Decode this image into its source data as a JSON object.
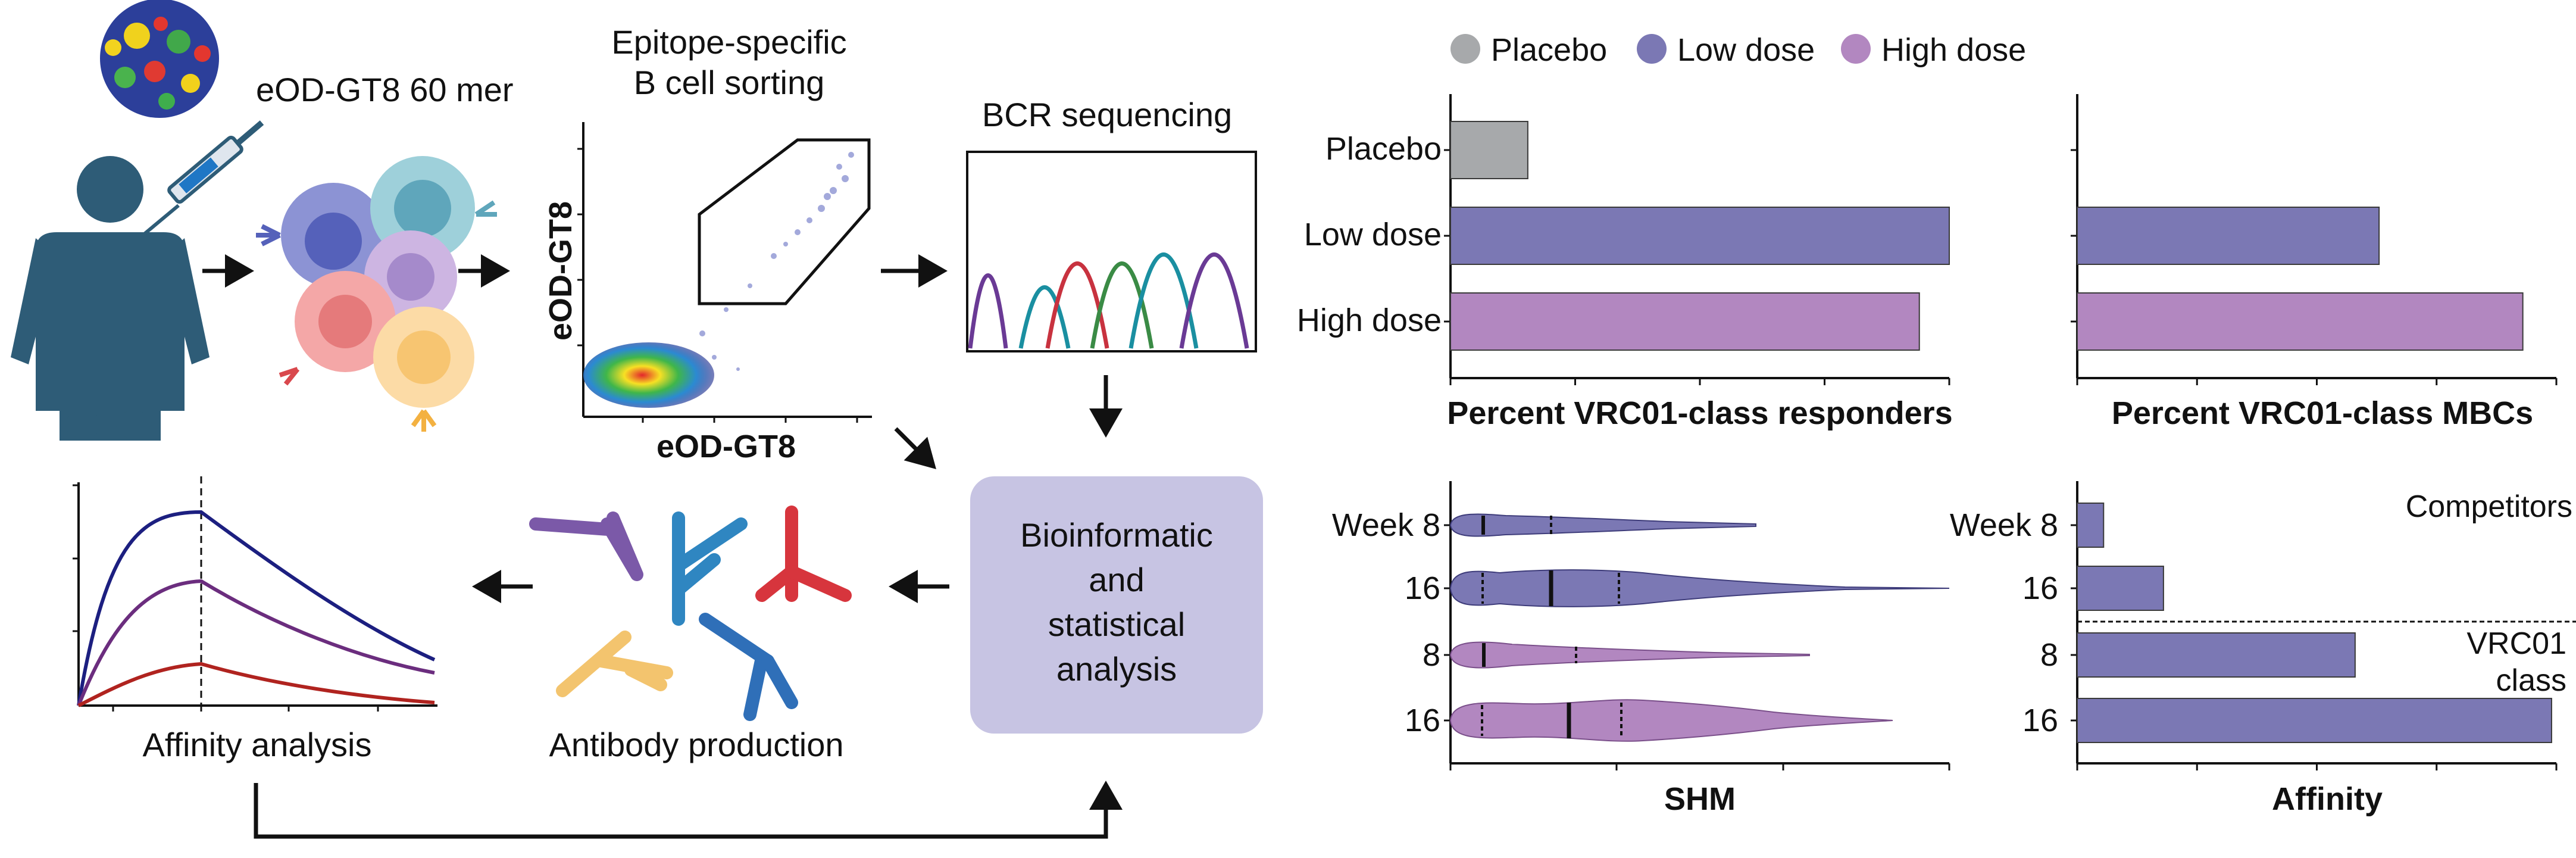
{
  "workflow": {
    "nanoparticle_label": "eOD-GT8 60 mer",
    "sorting_title_line1": "Epitope-specific",
    "sorting_title_line2": "B cell sorting",
    "flow_y_axis": "eOD-GT8",
    "flow_x_axis": "eOD-GT8",
    "sequencing_title": "BCR sequencing",
    "bioinformatic_line1": "Bioinformatic",
    "bioinformatic_line2": "and",
    "bioinformatic_line3": "statistical",
    "bioinformatic_line4": "analysis",
    "antibody_label": "Antibody production",
    "affinity_label": "Affinity analysis"
  },
  "legend": {
    "items": [
      {
        "label": "Placebo",
        "color": "#a7a9ab"
      },
      {
        "label": "Low dose",
        "color": "#7b78b4"
      },
      {
        "label": "High dose",
        "color": "#b287c0"
      }
    ]
  },
  "colors": {
    "placebo": "#a7a9ab",
    "low": "#7b78b4",
    "high": "#b287c0",
    "bio_box": "#c7c4e3"
  },
  "chart_data": [
    {
      "type": "bar",
      "xlabel": "Percent VRC01-class responders",
      "categories": [
        "Placebo",
        "Low dose",
        "High dose"
      ],
      "values": [
        0.155,
        1.0,
        0.94
      ],
      "xlim": [
        0,
        1
      ]
    },
    {
      "type": "bar",
      "xlabel": "Percent VRC01-class MBCs",
      "categories": [
        "",
        "",
        ""
      ],
      "values": [
        0,
        0.63,
        0.93
      ],
      "xlim": [
        0,
        1
      ]
    },
    {
      "type": "violin",
      "xlabel": "SHM",
      "categories": [
        "Week 8",
        "16",
        "8",
        "16"
      ],
      "group": [
        "low",
        "low",
        "high",
        "high"
      ],
      "xlim": [
        0,
        1
      ]
    },
    {
      "type": "bar",
      "xlabel": "Affinity",
      "categories": [
        "Week 8",
        "16",
        "8",
        "16"
      ],
      "values": [
        0.055,
        0.18,
        0.58,
        0.99
      ],
      "group_labels": [
        "Competitors",
        "VRC01",
        "class"
      ],
      "xlim": [
        0,
        1
      ]
    }
  ]
}
